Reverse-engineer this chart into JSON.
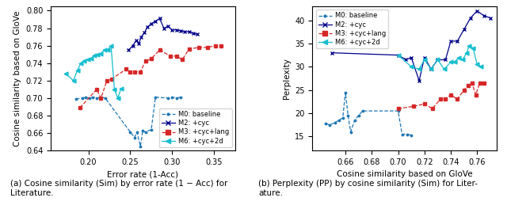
{
  "left": {
    "M0": {
      "x": [
        0.185,
        0.193,
        0.197,
        0.201,
        0.205,
        0.21,
        0.215,
        0.22,
        0.25,
        0.255,
        0.258,
        0.262,
        0.265,
        0.268,
        0.275,
        0.28,
        0.295,
        0.3,
        0.305,
        0.31
      ],
      "y": [
        0.699,
        0.7,
        0.701,
        0.7,
        0.701,
        0.7,
        0.701,
        0.7,
        0.661,
        0.655,
        0.661,
        0.645,
        0.663,
        0.661,
        0.664,
        0.701,
        0.7,
        0.701,
        0.7,
        0.701
      ],
      "color": "#1f77b4",
      "marker": ".",
      "linestyle": "--"
    },
    "M2": {
      "x": [
        0.248,
        0.253,
        0.257,
        0.26,
        0.263,
        0.267,
        0.27,
        0.275,
        0.28,
        0.285,
        0.29,
        0.295,
        0.3,
        0.305,
        0.31,
        0.315,
        0.32,
        0.325,
        0.33
      ],
      "y": [
        0.755,
        0.76,
        0.766,
        0.762,
        0.77,
        0.775,
        0.781,
        0.785,
        0.788,
        0.791,
        0.78,
        0.782,
        0.778,
        0.778,
        0.777,
        0.776,
        0.776,
        0.774,
        0.773
      ],
      "color": "#00008B",
      "marker": "x",
      "linestyle": "-"
    },
    "M3": {
      "x": [
        0.19,
        0.21,
        0.215,
        0.222,
        0.228,
        0.245,
        0.25,
        0.255,
        0.262,
        0.268,
        0.275,
        0.285,
        0.298,
        0.305,
        0.312,
        0.32,
        0.332,
        0.342,
        0.352,
        0.358
      ],
      "y": [
        0.689,
        0.71,
        0.7,
        0.72,
        0.722,
        0.733,
        0.73,
        0.73,
        0.73,
        0.742,
        0.745,
        0.755,
        0.748,
        0.748,
        0.744,
        0.756,
        0.758,
        0.758,
        0.76,
        0.76
      ],
      "color": "#d62728",
      "marker": "s",
      "linestyle": "--"
    },
    "M6": {
      "x": [
        0.173,
        0.182,
        0.187,
        0.191,
        0.195,
        0.199,
        0.203,
        0.207,
        0.211,
        0.215,
        0.219,
        0.223,
        0.227,
        0.231,
        0.235,
        0.239
      ],
      "y": [
        0.728,
        0.72,
        0.732,
        0.74,
        0.742,
        0.744,
        0.745,
        0.749,
        0.75,
        0.751,
        0.755,
        0.755,
        0.76,
        0.71,
        0.7,
        0.711
      ],
      "color": "#17becf",
      "marker": "<",
      "linestyle": "-"
    }
  },
  "right": {
    "M0": {
      "x": [
        0.645,
        0.648,
        0.652,
        0.655,
        0.658,
        0.66,
        0.662,
        0.664,
        0.667,
        0.67,
        0.673,
        0.7,
        0.703,
        0.707,
        0.71
      ],
      "y": [
        17.8,
        17.5,
        18.0,
        18.5,
        19.0,
        24.5,
        19.5,
        16.0,
        18.5,
        19.5,
        20.5,
        20.5,
        15.5,
        15.5,
        15.3
      ],
      "color": "#1f77b4",
      "marker": ".",
      "linestyle": "--"
    },
    "M2": {
      "x": [
        0.65,
        0.7,
        0.706,
        0.71,
        0.716,
        0.72,
        0.725,
        0.73,
        0.736,
        0.74,
        0.745,
        0.75,
        0.755,
        0.76,
        0.765,
        0.77
      ],
      "y": [
        33.0,
        32.5,
        31.5,
        32.0,
        27.0,
        32.0,
        29.5,
        31.5,
        31.5,
        35.5,
        35.5,
        38.0,
        40.5,
        42.0,
        41.0,
        40.5
      ],
      "color": "#00008B",
      "marker": "x",
      "linestyle": "-"
    },
    "M3": {
      "x": [
        0.7,
        0.712,
        0.72,
        0.726,
        0.732,
        0.736,
        0.74,
        0.745,
        0.75,
        0.753,
        0.756,
        0.759,
        0.762,
        0.765
      ],
      "y": [
        21.0,
        21.5,
        22.0,
        21.0,
        23.0,
        23.0,
        24.0,
        23.0,
        25.0,
        26.0,
        26.5,
        24.0,
        26.5,
        26.5
      ],
      "color": "#d62728",
      "marker": "s",
      "linestyle": "--"
    },
    "M6": {
      "x": [
        0.7,
        0.71,
        0.716,
        0.72,
        0.725,
        0.73,
        0.735,
        0.74,
        0.743,
        0.746,
        0.749,
        0.752,
        0.754,
        0.757,
        0.76,
        0.763
      ],
      "y": [
        32.5,
        30.0,
        29.5,
        31.5,
        29.5,
        31.5,
        29.5,
        31.0,
        31.0,
        32.0,
        31.5,
        33.0,
        34.5,
        34.0,
        30.5,
        30.0
      ],
      "color": "#17becf",
      "marker": "<",
      "linestyle": "-"
    }
  },
  "left_xlabel": "Error rate (1-Acc)",
  "left_ylabel": "Cosine similarity based on GloVe",
  "right_xlabel": "Cosine similarity based on GloVe",
  "right_ylabel": "Perplexity",
  "left_xlim": [
    0.155,
    0.375
  ],
  "left_ylim": [
    0.64,
    0.805
  ],
  "right_xlim": [
    0.635,
    0.775
  ],
  "right_ylim": [
    12,
    43
  ],
  "left_xticks": [
    0.2,
    0.25,
    0.3,
    0.35
  ],
  "right_xticks": [
    0.66,
    0.68,
    0.7,
    0.72,
    0.74,
    0.76
  ],
  "left_yticks": [
    0.64,
    0.66,
    0.68,
    0.7,
    0.72,
    0.74,
    0.76,
    0.78,
    0.8
  ],
  "right_yticks": [
    15,
    20,
    25,
    30,
    35,
    40
  ],
  "caption_left": "(a) Cosine similarity (Sim) by error rate (1 − Acc) for\nLiterature.",
  "caption_right": "(b) Perplexity (PP) by cosine similarity (Sim) for Liter-\nature.",
  "legend_labels": [
    "M0: baseline",
    "M2: +cyc",
    "M3: +cyc+lang",
    "M6: +cyc+2d"
  ],
  "legend_colors": [
    "#1f77b4",
    "#00008B",
    "#d62728",
    "#17becf"
  ],
  "legend_markers": [
    ".",
    "x",
    "s",
    "<"
  ],
  "legend_linestyles": [
    "--",
    "-",
    "--",
    "-"
  ]
}
